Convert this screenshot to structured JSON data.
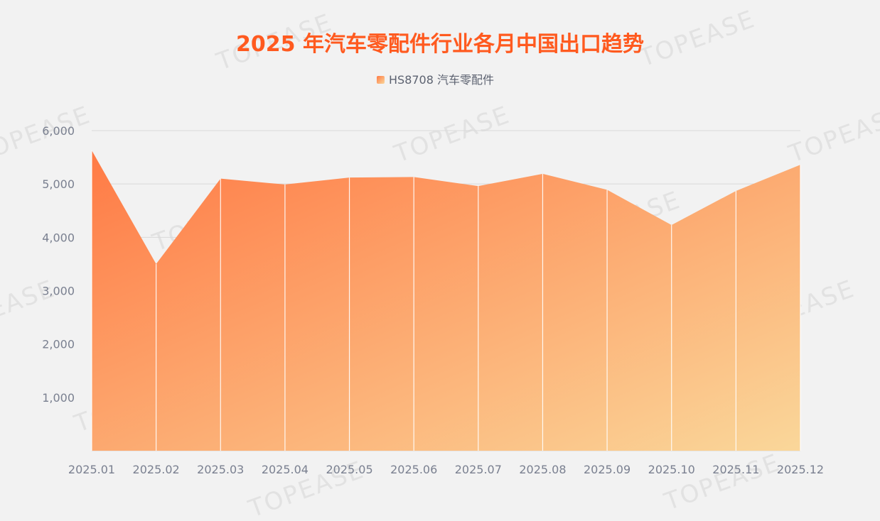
{
  "colors": {
    "background": "#f2f2f2",
    "title": "#ff5a1f",
    "axis_text": "#7a8090",
    "legend_text": "#5c6270",
    "gridline": "#d9d9d9",
    "area_start": "#ff7a45",
    "area_end": "#fad79a",
    "watermark": "#e2e2e2"
  },
  "watermark": "TOPEASE",
  "chart_data": {
    "type": "area",
    "title": "2025 年汽车零配件行业各月中国出口趋势",
    "legend_position": "top-center",
    "grid": true,
    "x": [
      "2025.01",
      "2025.02",
      "2025.03",
      "2025.04",
      "2025.05",
      "2025.06",
      "2025.07",
      "2025.08",
      "2025.09",
      "2025.10",
      "2025.11",
      "2025.12"
    ],
    "series": [
      {
        "name": "HS8708 汽车零配件",
        "values": [
          5630,
          3500,
          5100,
          4990,
          5120,
          5130,
          4960,
          5190,
          4890,
          4230,
          4870,
          5360
        ]
      }
    ],
    "ylim": [
      0,
      6000
    ],
    "yticks": [
      1000,
      2000,
      3000,
      4000,
      5000,
      6000
    ],
    "ytick_labels": [
      "1,000",
      "2,000",
      "3,000",
      "4,000",
      "5,000",
      "6,000"
    ]
  }
}
